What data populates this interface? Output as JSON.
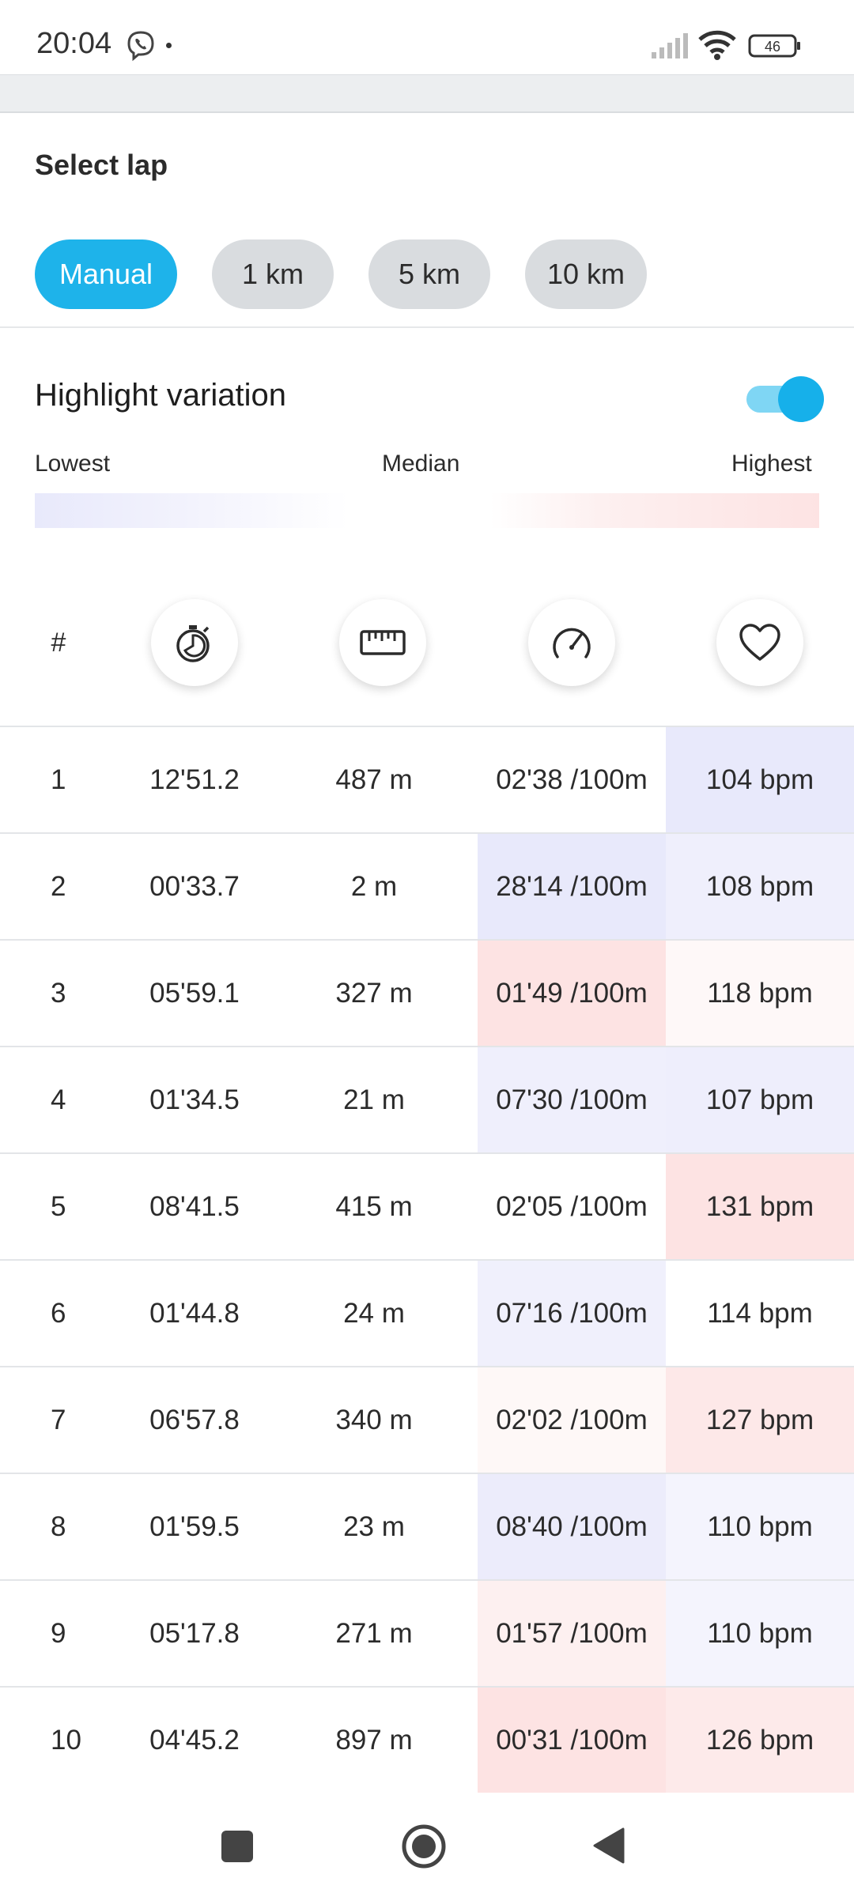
{
  "status_bar": {
    "time": "20:04",
    "battery": "46"
  },
  "select_lap": {
    "title": "Select lap",
    "chips": [
      {
        "label": "Manual",
        "active": true
      },
      {
        "label": "1 km",
        "active": false
      },
      {
        "label": "5 km",
        "active": false
      },
      {
        "label": "10 km",
        "active": false
      }
    ]
  },
  "highlight": {
    "label": "Highlight variation",
    "enabled": true,
    "legend": {
      "lowest": "Lowest",
      "median": "Median",
      "highest": "Highest"
    }
  },
  "table": {
    "header_hash": "#",
    "column_icons": [
      "stopwatch-icon",
      "ruler-icon",
      "speedometer-icon",
      "heart-icon"
    ],
    "rows": [
      {
        "num": "1",
        "time": "12'51.2",
        "distance": "487 m",
        "pace": "02'38 /100m",
        "hr": "104 bpm",
        "pace_color": "#ffffff",
        "hr_color": "#e8e9fb"
      },
      {
        "num": "2",
        "time": "00'33.7",
        "distance": "2 m",
        "pace": "28'14 /100m",
        "hr": "108 bpm",
        "pace_color": "#e8e9fb",
        "hr_color": "#efeffc"
      },
      {
        "num": "3",
        "time": "05'59.1",
        "distance": "327 m",
        "pace": "01'49 /100m",
        "hr": "118 bpm",
        "pace_color": "#fde3e3",
        "hr_color": "#fef8f8"
      },
      {
        "num": "4",
        "time": "01'34.5",
        "distance": "21 m",
        "pace": "07'30 /100m",
        "hr": "107 bpm",
        "pace_color": "#efeffc",
        "hr_color": "#eeeefc"
      },
      {
        "num": "5",
        "time": "08'41.5",
        "distance": "415 m",
        "pace": "02'05 /100m",
        "hr": "131 bpm",
        "pace_color": "#ffffff",
        "hr_color": "#fde3e3"
      },
      {
        "num": "6",
        "time": "01'44.8",
        "distance": "24 m",
        "pace": "07'16 /100m",
        "hr": "114 bpm",
        "pace_color": "#f0f0fc",
        "hr_color": "#ffffff"
      },
      {
        "num": "7",
        "time": "06'57.8",
        "distance": "340 m",
        "pace": "02'02 /100m",
        "hr": "127 bpm",
        "pace_color": "#fef8f7",
        "hr_color": "#fde8e8"
      },
      {
        "num": "8",
        "time": "01'59.5",
        "distance": "23 m",
        "pace": "08'40 /100m",
        "hr": "110 bpm",
        "pace_color": "#ececfb",
        "hr_color": "#f4f4fd"
      },
      {
        "num": "9",
        "time": "05'17.8",
        "distance": "271 m",
        "pace": "01'57 /100m",
        "hr": "110 bpm",
        "pace_color": "#fdf0f0",
        "hr_color": "#f4f4fd"
      },
      {
        "num": "10",
        "time": "04'45.2",
        "distance": "897 m",
        "pace": "00'31 /100m",
        "hr": "126 bpm",
        "pace_color": "#fde3e3",
        "hr_color": "#fdeaea"
      }
    ]
  }
}
